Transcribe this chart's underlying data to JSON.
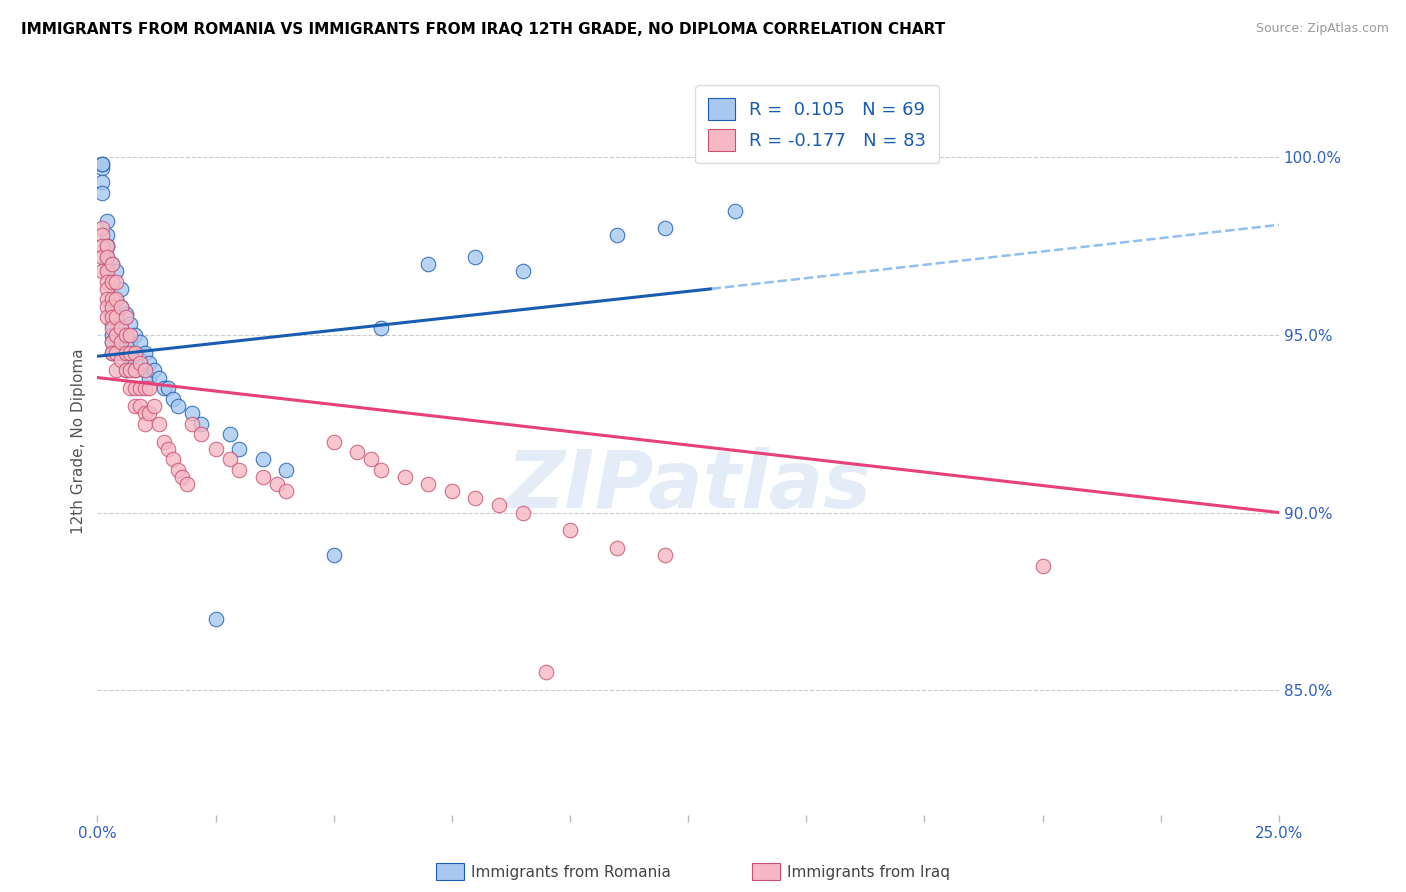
{
  "title": "IMMIGRANTS FROM ROMANIA VS IMMIGRANTS FROM IRAQ 12TH GRADE, NO DIPLOMA CORRELATION CHART",
  "source": "Source: ZipAtlas.com",
  "ylabel": "12th Grade, No Diploma",
  "ylabel_right_ticks": [
    "85.0%",
    "90.0%",
    "95.0%",
    "100.0%"
  ],
  "ylabel_right_vals": [
    0.85,
    0.9,
    0.95,
    1.0
  ],
  "xlim": [
    0.0,
    0.25
  ],
  "ylim": [
    0.815,
    1.025
  ],
  "legend_label1": "Immigrants from Romania",
  "legend_label2": "Immigrants from Iraq",
  "R1": 0.105,
  "N1": 69,
  "R2": -0.177,
  "N2": 83,
  "color_romania": "#A8C8F0",
  "color_iraq": "#F5B8C4",
  "trend_color_romania": "#1A5CB0",
  "trend_color_iraq": "#E8407A",
  "trend_dashed_color": "#90C0EE",
  "romania_trend_x0": 0.0,
  "romania_trend_y0": 0.944,
  "romania_trend_x1": 0.13,
  "romania_trend_y1": 0.963,
  "romania_trend_xdash0": 0.13,
  "romania_trend_ydash0": 0.963,
  "romania_trend_xdash1": 0.25,
  "romania_trend_ydash1": 0.981,
  "iraq_trend_x0": 0.0,
  "iraq_trend_y0": 0.938,
  "iraq_trend_x1": 0.25,
  "iraq_trend_y1": 0.9,
  "romania_x": [
    0.001,
    0.001,
    0.001,
    0.001,
    0.001,
    0.002,
    0.002,
    0.002,
    0.002,
    0.002,
    0.002,
    0.002,
    0.003,
    0.003,
    0.003,
    0.003,
    0.003,
    0.003,
    0.003,
    0.003,
    0.003,
    0.003,
    0.004,
    0.004,
    0.004,
    0.004,
    0.004,
    0.005,
    0.005,
    0.005,
    0.005,
    0.005,
    0.006,
    0.006,
    0.006,
    0.006,
    0.007,
    0.007,
    0.007,
    0.008,
    0.008,
    0.008,
    0.009,
    0.009,
    0.01,
    0.01,
    0.011,
    0.011,
    0.012,
    0.013,
    0.014,
    0.015,
    0.016,
    0.017,
    0.02,
    0.022,
    0.025,
    0.028,
    0.03,
    0.035,
    0.04,
    0.05,
    0.06,
    0.07,
    0.08,
    0.09,
    0.11,
    0.12,
    0.135
  ],
  "romania_y": [
    0.997,
    0.993,
    0.998,
    0.998,
    0.99,
    0.978,
    0.975,
    0.982,
    0.975,
    0.972,
    0.968,
    0.97,
    0.97,
    0.965,
    0.965,
    0.96,
    0.958,
    0.956,
    0.953,
    0.95,
    0.948,
    0.945,
    0.968,
    0.96,
    0.955,
    0.95,
    0.945,
    0.963,
    0.958,
    0.952,
    0.948,
    0.945,
    0.956,
    0.95,
    0.945,
    0.94,
    0.953,
    0.948,
    0.942,
    0.95,
    0.945,
    0.94,
    0.948,
    0.943,
    0.945,
    0.94,
    0.942,
    0.938,
    0.94,
    0.938,
    0.935,
    0.935,
    0.932,
    0.93,
    0.928,
    0.925,
    0.87,
    0.922,
    0.918,
    0.915,
    0.912,
    0.888,
    0.952,
    0.97,
    0.972,
    0.968,
    0.978,
    0.98,
    0.985
  ],
  "iraq_x": [
    0.001,
    0.001,
    0.001,
    0.001,
    0.001,
    0.002,
    0.002,
    0.002,
    0.002,
    0.002,
    0.002,
    0.002,
    0.002,
    0.003,
    0.003,
    0.003,
    0.003,
    0.003,
    0.003,
    0.003,
    0.003,
    0.004,
    0.004,
    0.004,
    0.004,
    0.004,
    0.004,
    0.005,
    0.005,
    0.005,
    0.005,
    0.006,
    0.006,
    0.006,
    0.006,
    0.007,
    0.007,
    0.007,
    0.007,
    0.008,
    0.008,
    0.008,
    0.008,
    0.009,
    0.009,
    0.009,
    0.01,
    0.01,
    0.01,
    0.01,
    0.011,
    0.011,
    0.012,
    0.013,
    0.014,
    0.015,
    0.016,
    0.017,
    0.018,
    0.019,
    0.02,
    0.022,
    0.025,
    0.028,
    0.03,
    0.035,
    0.038,
    0.04,
    0.05,
    0.055,
    0.058,
    0.06,
    0.065,
    0.07,
    0.075,
    0.08,
    0.085,
    0.09,
    0.095,
    0.1,
    0.11,
    0.12,
    0.2
  ],
  "iraq_y": [
    0.98,
    0.978,
    0.975,
    0.972,
    0.968,
    0.975,
    0.972,
    0.968,
    0.965,
    0.963,
    0.96,
    0.958,
    0.955,
    0.97,
    0.965,
    0.96,
    0.958,
    0.955,
    0.952,
    0.948,
    0.945,
    0.965,
    0.96,
    0.955,
    0.95,
    0.945,
    0.94,
    0.958,
    0.952,
    0.948,
    0.943,
    0.955,
    0.95,
    0.945,
    0.94,
    0.95,
    0.945,
    0.94,
    0.935,
    0.945,
    0.94,
    0.935,
    0.93,
    0.942,
    0.935,
    0.93,
    0.94,
    0.935,
    0.928,
    0.925,
    0.935,
    0.928,
    0.93,
    0.925,
    0.92,
    0.918,
    0.915,
    0.912,
    0.91,
    0.908,
    0.925,
    0.922,
    0.918,
    0.915,
    0.912,
    0.91,
    0.908,
    0.906,
    0.92,
    0.917,
    0.915,
    0.912,
    0.91,
    0.908,
    0.906,
    0.904,
    0.902,
    0.9,
    0.855,
    0.895,
    0.89,
    0.888,
    0.885
  ]
}
